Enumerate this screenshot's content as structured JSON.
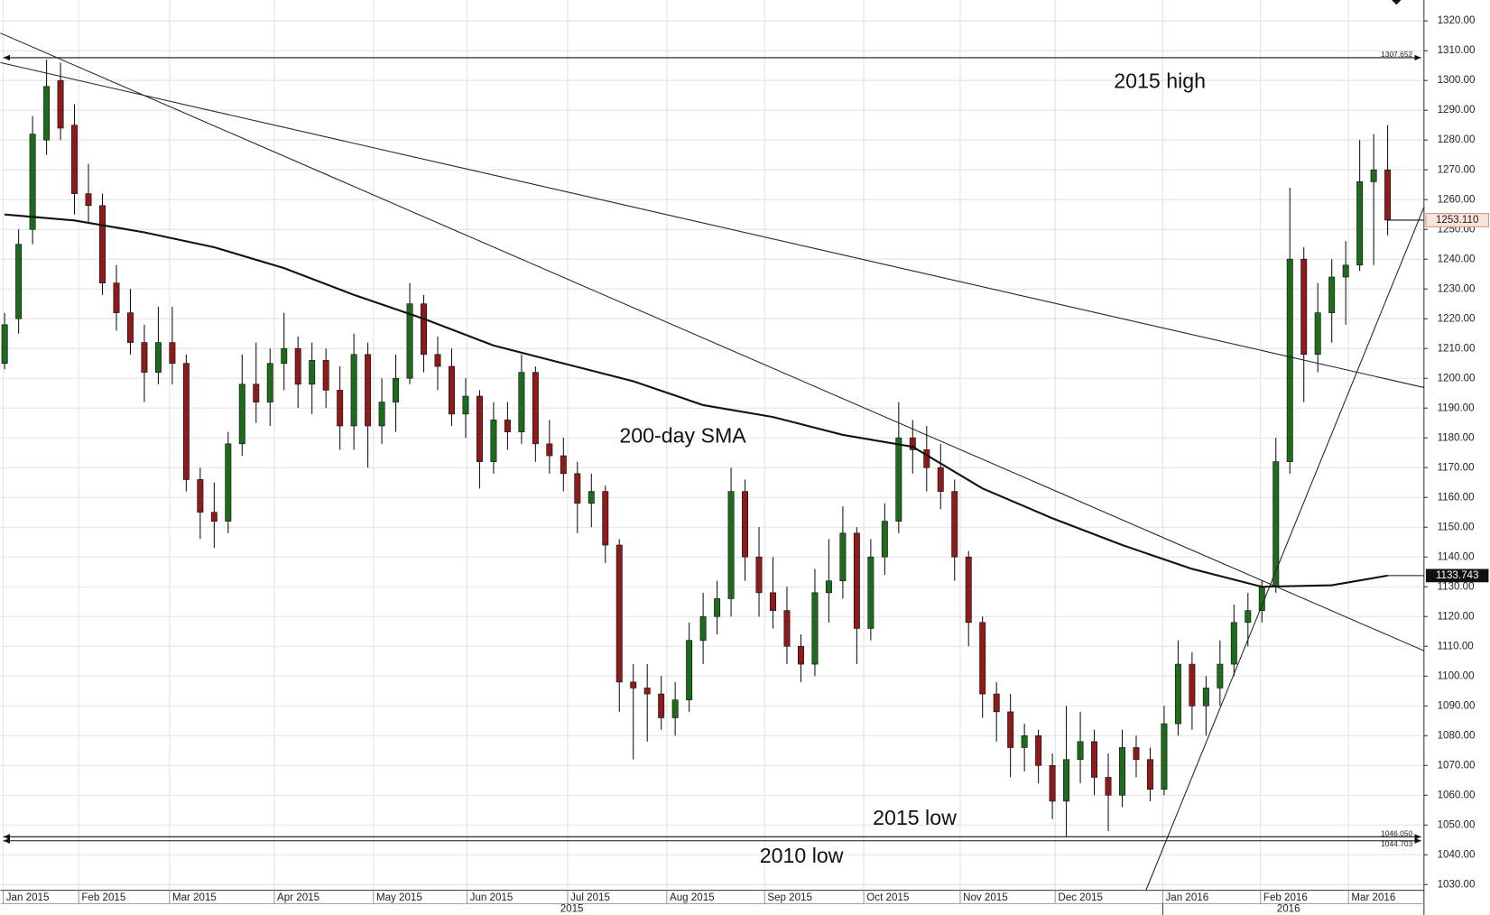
{
  "chart_data": {
    "type": "candlestick",
    "xlim": [
      -0.3,
      101.6
    ],
    "xticks": [
      {
        "value": -0.1,
        "label": "Jan 2015"
      },
      {
        "value": 5.3,
        "label": "Feb 2015"
      },
      {
        "value": 11.8,
        "label": "Mar 2015"
      },
      {
        "value": 19.3,
        "label": "Apr 2015"
      },
      {
        "value": 26.4,
        "label": "May 2015"
      },
      {
        "value": 33.1,
        "label": "Jun 2015"
      },
      {
        "value": 40.3,
        "label": "Jul 2015"
      },
      {
        "value": 47.4,
        "label": "Aug 2015"
      },
      {
        "value": 54.4,
        "label": "Sep 2015"
      },
      {
        "value": 61.5,
        "label": "Oct 2015"
      },
      {
        "value": 68.4,
        "label": "Nov 2015"
      },
      {
        "value": 75.2,
        "label": "Dec 2015"
      },
      {
        "value": 82.9,
        "label": "Jan 2016"
      },
      {
        "value": 89.9,
        "label": "Feb 2016"
      },
      {
        "value": 96.2,
        "label": "Mar 2016"
      }
    ],
    "years": [
      {
        "value": 40.6,
        "label": "2015"
      },
      {
        "value": 91.9,
        "label": "2016"
      }
    ],
    "year_divider": 82.9,
    "ylim": [
      1028.08,
      1327.02
    ],
    "yticks": [
      {
        "value": 1030,
        "label": "1030.00"
      },
      {
        "value": 1040,
        "label": "1040.00"
      },
      {
        "value": 1050,
        "label": "1050.00"
      },
      {
        "value": 1060,
        "label": "1060.00"
      },
      {
        "value": 1070,
        "label": "1070.00"
      },
      {
        "value": 1080,
        "label": "1080.00"
      },
      {
        "value": 1090,
        "label": "1090.00"
      },
      {
        "value": 1100,
        "label": "1100.00"
      },
      {
        "value": 1110,
        "label": "1110.00"
      },
      {
        "value": 1120,
        "label": "1120.00"
      },
      {
        "value": 1130,
        "label": "1130.00"
      },
      {
        "value": 1140,
        "label": "1140.00"
      },
      {
        "value": 1150,
        "label": "1150.00"
      },
      {
        "value": 1160,
        "label": "1160.00"
      },
      {
        "value": 1170,
        "label": "1170.00"
      },
      {
        "value": 1180,
        "label": "1180.00"
      },
      {
        "value": 1190,
        "label": "1190.00"
      },
      {
        "value": 1200,
        "label": "1200.00"
      },
      {
        "value": 1210,
        "label": "1210.00"
      },
      {
        "value": 1220,
        "label": "1220.00"
      },
      {
        "value": 1230,
        "label": "1230.00"
      },
      {
        "value": 1240,
        "label": "1240.00"
      },
      {
        "value": 1250,
        "label": "1250.00"
      },
      {
        "value": 1260,
        "label": "1260.00"
      },
      {
        "value": 1270,
        "label": "1270.00"
      },
      {
        "value": 1280,
        "label": "1280.00"
      },
      {
        "value": 1290,
        "label": "1290.00"
      },
      {
        "value": 1300,
        "label": "1300.00"
      },
      {
        "value": 1310,
        "label": "1310.00"
      },
      {
        "value": 1320,
        "label": "1320.00"
      }
    ],
    "grid": true,
    "up_color": "#1e6b1e",
    "down_color": "#8e1b1b",
    "candles": {
      "open": [
        1205,
        1220,
        1250,
        1280,
        1300,
        1285,
        1262,
        1258,
        1232,
        1222,
        1212,
        1202,
        1212,
        1205,
        1166,
        1155,
        1152,
        1178,
        1198,
        1192,
        1205,
        1210,
        1198,
        1206,
        1196,
        1184,
        1208,
        1184,
        1192,
        1200,
        1225,
        1208,
        1204,
        1188,
        1194,
        1172,
        1186,
        1182,
        1202,
        1178,
        1174,
        1168,
        1158,
        1162,
        1144,
        1098,
        1096,
        1094,
        1086,
        1092,
        1112,
        1120,
        1126,
        1162,
        1140,
        1128,
        1122,
        1110,
        1104,
        1128,
        1132,
        1148,
        1116,
        1140,
        1152,
        1180,
        1176,
        1170,
        1162,
        1140,
        1118,
        1094,
        1088,
        1076,
        1080,
        1070,
        1058,
        1072,
        1078,
        1066,
        1060,
        1076,
        1072,
        1062,
        1084,
        1104,
        1090,
        1096,
        1104,
        1118,
        1122,
        1130,
        1172,
        1240,
        1208,
        1222,
        1234,
        1238,
        1266,
        1270
      ],
      "high": [
        1222,
        1250,
        1288,
        1307,
        1306,
        1292,
        1272,
        1262,
        1238,
        1230,
        1218,
        1224,
        1224,
        1208,
        1170,
        1165,
        1182,
        1208,
        1212,
        1210,
        1222,
        1214,
        1212,
        1210,
        1204,
        1215,
        1212,
        1200,
        1208,
        1232,
        1228,
        1214,
        1210,
        1200,
        1196,
        1192,
        1192,
        1208,
        1204,
        1186,
        1180,
        1172,
        1168,
        1164,
        1146,
        1104,
        1104,
        1100,
        1098,
        1118,
        1128,
        1132,
        1170,
        1166,
        1150,
        1140,
        1130,
        1114,
        1136,
        1146,
        1157,
        1150,
        1146,
        1158,
        1192,
        1186,
        1184,
        1178,
        1166,
        1142,
        1120,
        1098,
        1094,
        1084,
        1082,
        1074,
        1090,
        1088,
        1082,
        1074,
        1082,
        1080,
        1076,
        1090,
        1112,
        1108,
        1100,
        1112,
        1124,
        1128,
        1132,
        1180,
        1264,
        1244,
        1232,
        1240,
        1246,
        1280,
        1282,
        1285
      ],
      "low": [
        1203,
        1215,
        1245,
        1275,
        1280,
        1255,
        1252,
        1228,
        1216,
        1208,
        1192,
        1198,
        1198,
        1162,
        1146,
        1143,
        1148,
        1174,
        1185,
        1184,
        1196,
        1190,
        1188,
        1190,
        1176,
        1176,
        1170,
        1178,
        1182,
        1198,
        1202,
        1196,
        1184,
        1180,
        1163,
        1168,
        1176,
        1178,
        1172,
        1168,
        1162,
        1148,
        1150,
        1138,
        1088,
        1072,
        1078,
        1082,
        1080,
        1088,
        1104,
        1114,
        1120,
        1132,
        1120,
        1116,
        1104,
        1098,
        1100,
        1118,
        1126,
        1104,
        1112,
        1134,
        1148,
        1168,
        1162,
        1156,
        1132,
        1110,
        1086,
        1078,
        1066,
        1068,
        1064,
        1052,
        1046,
        1064,
        1060,
        1048,
        1056,
        1066,
        1058,
        1060,
        1080,
        1082,
        1080,
        1090,
        1100,
        1110,
        1118,
        1128,
        1168,
        1192,
        1202,
        1212,
        1218,
        1236,
        1238,
        1248
      ],
      "close": [
        1218,
        1245,
        1282,
        1298,
        1284,
        1262,
        1258,
        1232,
        1222,
        1212,
        1202,
        1212,
        1205,
        1166,
        1155,
        1152,
        1178,
        1198,
        1192,
        1205,
        1210,
        1198,
        1206,
        1196,
        1184,
        1208,
        1184,
        1192,
        1200,
        1225,
        1208,
        1204,
        1188,
        1194,
        1172,
        1186,
        1182,
        1202,
        1178,
        1174,
        1168,
        1158,
        1162,
        1144,
        1098,
        1096,
        1094,
        1086,
        1092,
        1112,
        1120,
        1126,
        1162,
        1140,
        1128,
        1122,
        1110,
        1104,
        1128,
        1132,
        1148,
        1116,
        1140,
        1152,
        1180,
        1176,
        1170,
        1162,
        1140,
        1118,
        1094,
        1088,
        1076,
        1080,
        1070,
        1058,
        1072,
        1078,
        1066,
        1060,
        1076,
        1072,
        1062,
        1084,
        1104,
        1090,
        1096,
        1104,
        1118,
        1122,
        1130,
        1172,
        1240,
        1208,
        1222,
        1234,
        1238,
        1266,
        1270,
        1253.11
      ],
      "last_close_label": "1253.110"
    },
    "sma": {
      "x": [
        0,
        5,
        10,
        15,
        20,
        25,
        30,
        35,
        40,
        45,
        50,
        55,
        60,
        65,
        70,
        75,
        80,
        85,
        90,
        95,
        99
      ],
      "values": [
        1255,
        1253,
        1249,
        1244,
        1237,
        1228,
        1220,
        1211,
        1205,
        1199,
        1191,
        1187,
        1181,
        1177,
        1163,
        1153,
        1144,
        1136,
        1130,
        1130.5,
        1133.743
      ]
    },
    "trendlines": [
      {
        "x": [
          -0.3,
          101.6
        ],
        "values": [
          1315.9,
          1108.5
        ]
      },
      {
        "x": [
          -0.3,
          101.6
        ],
        "values": [
          1306.0,
          1196.9
        ]
      },
      {
        "x": [
          81.7,
          101.6
        ],
        "values": [
          1028.1,
          1257.5
        ]
      }
    ],
    "levels": [
      1307.652,
      {
        "value": 1046.05,
        "label": "1046.050"
      },
      1044.703
    ],
    "annotations": [
      "2015 high",
      "200-day SMA",
      "2015 low",
      "2010 low"
    ]
  }
}
